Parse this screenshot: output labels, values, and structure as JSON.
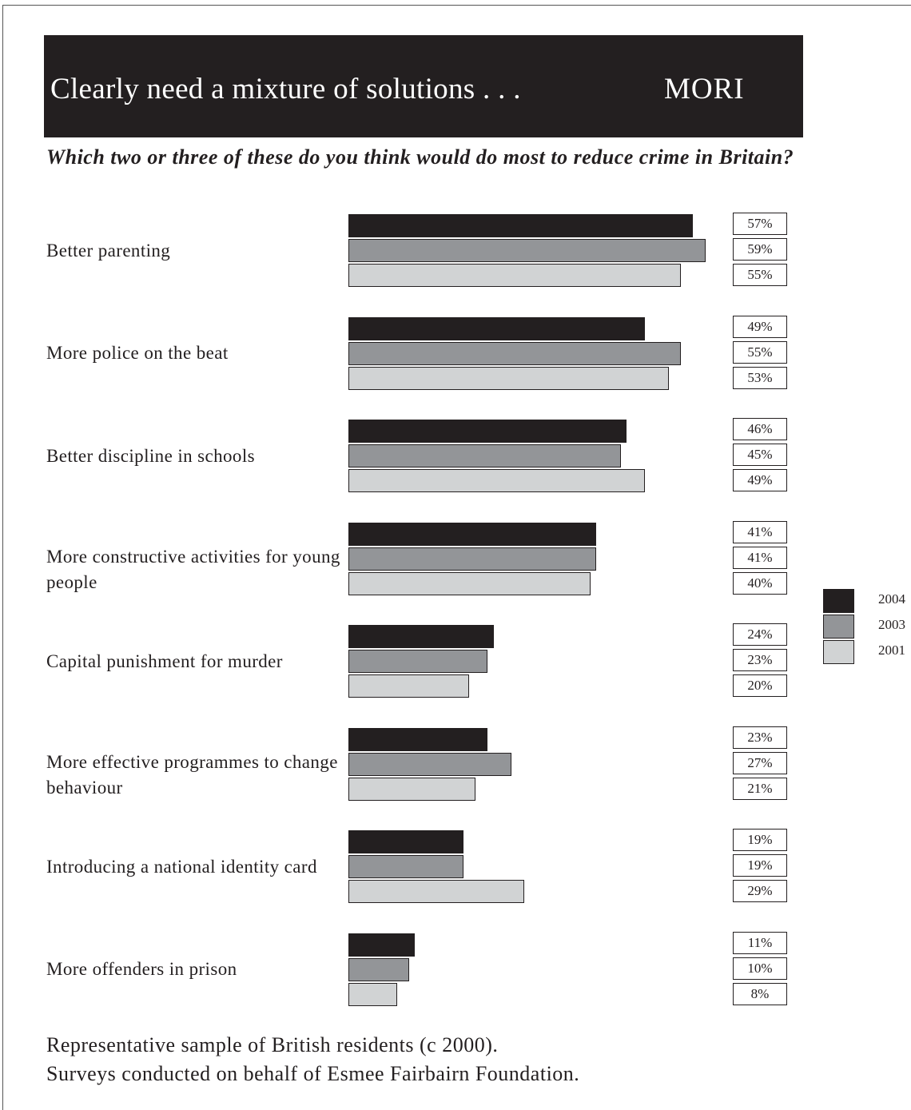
{
  "header": {
    "title": "Clearly need a mixture of solutions . . .",
    "brand": "MORI"
  },
  "question": "Which two or three of these do you think would do most to reduce crime in Britain?",
  "footer": {
    "line1": "Representative sample of British residents (c 2000).",
    "line2": "Surveys conducted on behalf of Esmee Fairbairn Foundation."
  },
  "colors": {
    "2004": "#231f20",
    "2003": "#939598",
    "2001": "#d1d3d4"
  },
  "chart_data": {
    "type": "bar",
    "orientation": "horizontal",
    "categories": [
      "Better parenting",
      "More police on the beat",
      "Better discipline in schools",
      "More constructive activities for young people",
      "Capital punishment for murder",
      "More effective programmes to change behaviour",
      "Introducing a national identity card",
      "More offenders in prison"
    ],
    "series": [
      {
        "name": "2004",
        "values": [
          57,
          49,
          46,
          41,
          24,
          23,
          19,
          11
        ]
      },
      {
        "name": "2003",
        "values": [
          59,
          55,
          45,
          41,
          23,
          27,
          19,
          10
        ]
      },
      {
        "name": "2001",
        "values": [
          55,
          53,
          49,
          40,
          20,
          21,
          29,
          8
        ]
      }
    ],
    "unit": "%",
    "legend": "right",
    "grid": false
  }
}
